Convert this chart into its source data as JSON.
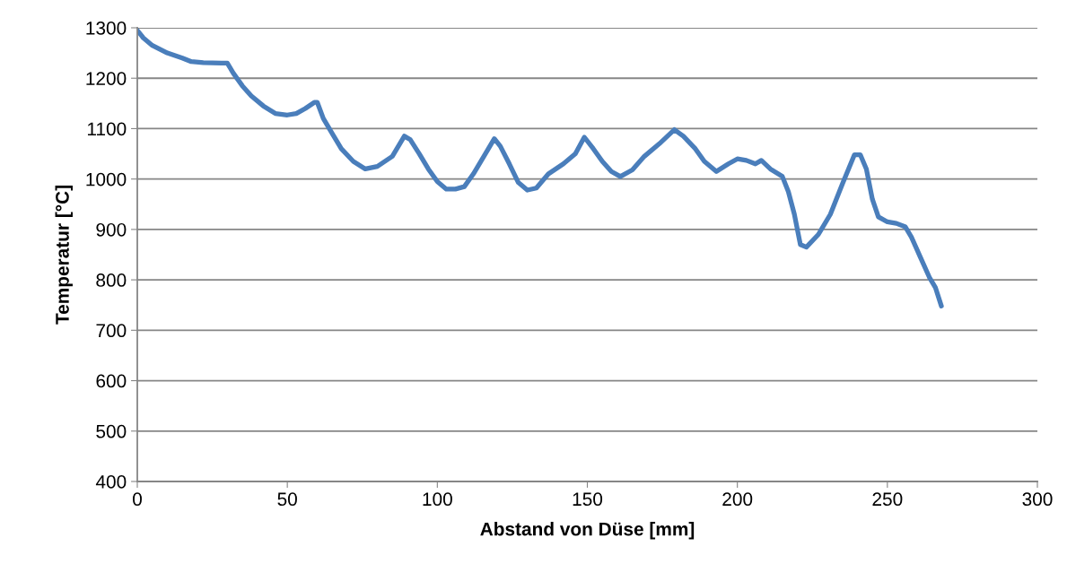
{
  "chart_data": {
    "type": "line",
    "xlabel": "Abstand von Düse [mm]",
    "ylabel": "Temperatur [°C]",
    "xlim": [
      0,
      300
    ],
    "xticks": [
      0,
      50,
      100,
      150,
      200,
      250,
      300
    ],
    "ylim": [
      400,
      1300
    ],
    "yticks": [
      400,
      500,
      600,
      700,
      800,
      900,
      1000,
      1100,
      1200,
      1300
    ],
    "grid": "y",
    "marker": "none",
    "line_style": "solid",
    "series": [
      {
        "color": "#4a7ebb",
        "x": [
          0,
          2,
          5,
          10,
          15,
          18,
          22,
          28,
          30,
          32,
          35,
          38,
          42,
          46,
          50,
          53,
          56,
          59,
          60,
          62,
          65,
          68,
          72,
          76,
          80,
          85,
          89,
          91,
          94,
          97,
          100,
          103,
          106,
          109,
          112,
          116,
          119,
          121,
          124,
          127,
          130,
          133,
          137,
          142,
          146,
          149,
          152,
          155,
          158,
          161,
          165,
          169,
          174,
          179,
          182,
          186,
          189,
          193,
          197,
          200,
          203,
          206,
          208,
          211,
          215,
          217,
          219,
          221,
          223,
          227,
          231,
          235,
          239,
          241,
          243,
          245,
          247,
          250,
          253,
          256,
          258,
          261,
          264,
          266,
          268
        ],
        "values": [
          1295,
          1280,
          1265,
          1250,
          1240,
          1233,
          1231,
          1230,
          1230,
          1210,
          1185,
          1165,
          1145,
          1130,
          1127,
          1130,
          1140,
          1152,
          1152,
          1120,
          1090,
          1060,
          1035,
          1020,
          1025,
          1045,
          1085,
          1078,
          1050,
          1020,
          995,
          980,
          980,
          985,
          1010,
          1050,
          1080,
          1065,
          1030,
          993,
          978,
          982,
          1010,
          1030,
          1050,
          1083,
          1060,
          1035,
          1015,
          1005,
          1018,
          1045,
          1070,
          1098,
          1085,
          1060,
          1035,
          1015,
          1030,
          1040,
          1037,
          1030,
          1037,
          1020,
          1005,
          975,
          930,
          870,
          865,
          890,
          930,
          990,
          1048,
          1048,
          1020,
          960,
          925,
          915,
          912,
          905,
          885,
          845,
          805,
          785,
          748
        ]
      }
    ]
  }
}
